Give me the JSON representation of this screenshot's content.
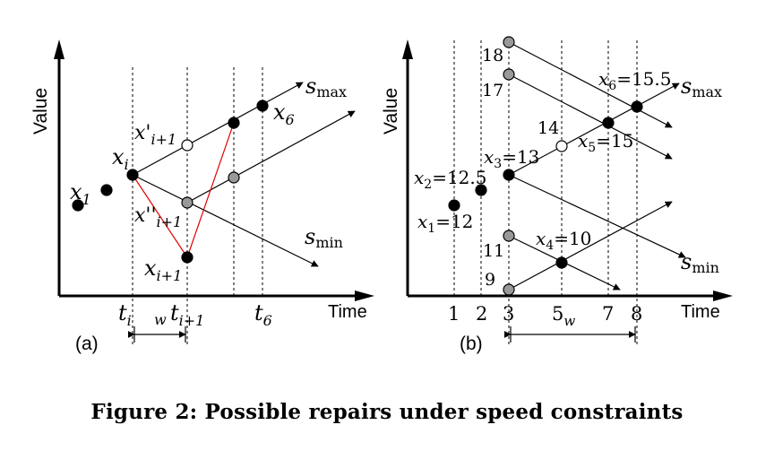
{
  "colors": {
    "ink": "#000000",
    "repair_line": "#e00000",
    "gray_point": "#999999",
    "white_point": "#ffffff"
  },
  "panel_a": {
    "panel_label": "(a)",
    "y_axis_label": "Value",
    "x_axis_label": "Time",
    "x_ticks": [
      {
        "base": "t",
        "sub": "i"
      },
      {
        "base": "t",
        "sub": "i+1"
      },
      {
        "base": "t",
        "sub": "6"
      }
    ],
    "window": {
      "base": "",
      "sub": "w"
    },
    "point_labels": {
      "x1": {
        "base": "x",
        "sub": "1"
      },
      "xi": {
        "base": "x",
        "sub": "i"
      },
      "x6": {
        "base": "x",
        "sub": "6"
      },
      "xprime": {
        "base": "x'",
        "sub": "i+1"
      },
      "xdprime": {
        "base": "x''",
        "sub": "i+1"
      },
      "xi1": {
        "base": "x",
        "sub": "i+1"
      }
    },
    "smax": {
      "base": "s",
      "sub": "max"
    },
    "smin": {
      "base": "s",
      "sub": "min"
    }
  },
  "panel_b": {
    "panel_label": "(b)",
    "y_axis_label": "Value",
    "x_axis_label": "Time",
    "x_ticks": [
      "1",
      "2",
      "3",
      "7",
      "8"
    ],
    "tick_5w": {
      "base": "5",
      "sub": "w"
    },
    "point_values": [
      "18",
      "17",
      "14",
      "11",
      "9"
    ],
    "point_labels": {
      "x1": {
        "base": "x",
        "sub": "1",
        "value": "=12"
      },
      "x2": {
        "base": "x",
        "sub": "2",
        "value": "=12.5"
      },
      "x3": {
        "base": "x",
        "sub": "3",
        "value": "=13"
      },
      "x4": {
        "base": "x",
        "sub": "4",
        "value": "=10"
      },
      "x5": {
        "base": "x",
        "sub": "5",
        "value": "=15"
      },
      "x6": {
        "base": "x",
        "sub": "6",
        "value": "=15.5"
      }
    },
    "smax": {
      "base": "s",
      "sub": "max"
    },
    "smin": {
      "base": "s",
      "sub": "min"
    }
  },
  "caption": "Figure 2: Possible repairs under speed constraints"
}
